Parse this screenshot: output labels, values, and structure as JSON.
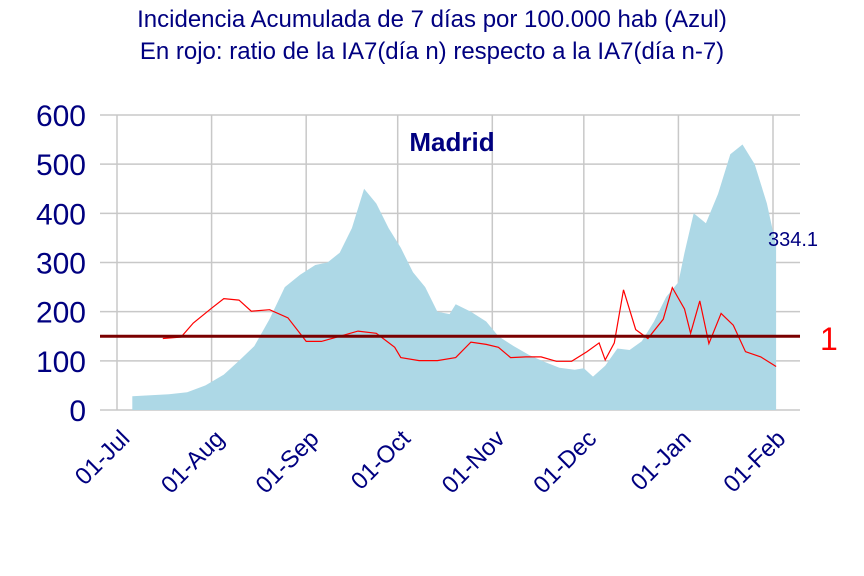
{
  "chart_data": {
    "type": "area",
    "title": "Incidencia Acumulada de 7 días por 100.000 hab (Azul)",
    "subtitle": "En rojo: ratio de la IA7(día n) respecto a la IA7(día n-7)",
    "panel_label": "Madrid",
    "ylim": [
      0,
      600
    ],
    "y_ticks": [
      "0",
      "100",
      "200",
      "300",
      "400",
      "500",
      "600"
    ],
    "x_ticks": [
      "01-Jul",
      "01-Aug",
      "01-Sep",
      "01-Oct",
      "01-Nov",
      "01-Dec",
      "01-Jan",
      "01-Feb"
    ],
    "grid": true,
    "last_value_label": "334.1",
    "reference_line": {
      "label": "1",
      "value": 150,
      "color": "#7a0000"
    },
    "series": [
      {
        "kind": "area",
        "color": "#add8e6",
        "points": [
          [
            "2020-07-06",
            28
          ],
          [
            "2020-07-12",
            30
          ],
          [
            "2020-07-18",
            32
          ],
          [
            "2020-07-24",
            36
          ],
          [
            "2020-07-30",
            50
          ],
          [
            "2020-08-05",
            72
          ],
          [
            "2020-08-10",
            100
          ],
          [
            "2020-08-15",
            130
          ],
          [
            "2020-08-20",
            185
          ],
          [
            "2020-08-25",
            250
          ],
          [
            "2020-08-30",
            275
          ],
          [
            "2020-09-04",
            295
          ],
          [
            "2020-09-08",
            300
          ],
          [
            "2020-09-12",
            320
          ],
          [
            "2020-09-16",
            370
          ],
          [
            "2020-09-20",
            450
          ],
          [
            "2020-09-24",
            420
          ],
          [
            "2020-09-28",
            370
          ],
          [
            "2020-10-02",
            330
          ],
          [
            "2020-10-06",
            280
          ],
          [
            "2020-10-10",
            250
          ],
          [
            "2020-10-14",
            200
          ],
          [
            "2020-10-18",
            195
          ],
          [
            "2020-10-20",
            215
          ],
          [
            "2020-10-25",
            200
          ],
          [
            "2020-10-30",
            180
          ],
          [
            "2020-11-03",
            150
          ],
          [
            "2020-11-08",
            130
          ],
          [
            "2020-11-13",
            112
          ],
          [
            "2020-11-18",
            98
          ],
          [
            "2020-11-23",
            86
          ],
          [
            "2020-11-28",
            82
          ],
          [
            "2020-12-01",
            85
          ],
          [
            "2020-12-04",
            68
          ],
          [
            "2020-12-08",
            90
          ],
          [
            "2020-12-12",
            125
          ],
          [
            "2020-12-16",
            122
          ],
          [
            "2020-12-20",
            140
          ],
          [
            "2020-12-24",
            180
          ],
          [
            "2020-12-28",
            230
          ],
          [
            "2021-01-01",
            260
          ],
          [
            "2021-01-03",
            320
          ],
          [
            "2021-01-06",
            400
          ],
          [
            "2021-01-10",
            380
          ],
          [
            "2021-01-14",
            440
          ],
          [
            "2021-01-18",
            520
          ],
          [
            "2021-01-22",
            540
          ],
          [
            "2021-01-26",
            500
          ],
          [
            "2021-01-30",
            420
          ],
          [
            "2021-02-02",
            334.1
          ]
        ]
      },
      {
        "kind": "line",
        "color": "#ff0000",
        "points": [
          [
            "2020-07-16",
            0.97
          ],
          [
            "2020-07-22",
            0.99
          ],
          [
            "2020-07-26",
            1.18
          ],
          [
            "2020-08-01",
            1.38
          ],
          [
            "2020-08-05",
            1.51
          ],
          [
            "2020-08-10",
            1.49
          ],
          [
            "2020-08-14",
            1.34
          ],
          [
            "2020-08-20",
            1.36
          ],
          [
            "2020-08-26",
            1.25
          ],
          [
            "2020-09-01",
            0.93
          ],
          [
            "2020-09-06",
            0.93
          ],
          [
            "2020-09-12",
            1.0
          ],
          [
            "2020-09-18",
            1.07
          ],
          [
            "2020-09-24",
            1.04
          ],
          [
            "2020-09-30",
            0.85
          ],
          [
            "2020-10-02",
            0.71
          ],
          [
            "2020-10-08",
            0.67
          ],
          [
            "2020-10-14",
            0.67
          ],
          [
            "2020-10-20",
            0.71
          ],
          [
            "2020-10-25",
            0.92
          ],
          [
            "2020-10-30",
            0.89
          ],
          [
            "2020-11-03",
            0.85
          ],
          [
            "2020-11-07",
            0.71
          ],
          [
            "2020-11-12",
            0.72
          ],
          [
            "2020-11-17",
            0.72
          ],
          [
            "2020-11-22",
            0.66
          ],
          [
            "2020-11-27",
            0.66
          ],
          [
            "2020-12-02",
            0.79
          ],
          [
            "2020-12-06",
            0.91
          ],
          [
            "2020-12-08",
            0.68
          ],
          [
            "2020-12-11",
            0.91
          ],
          [
            "2020-12-14",
            1.63
          ],
          [
            "2020-12-18",
            1.09
          ],
          [
            "2020-12-22",
            0.97
          ],
          [
            "2020-12-27",
            1.23
          ],
          [
            "2020-12-30",
            1.66
          ],
          [
            "2021-01-03",
            1.37
          ],
          [
            "2021-01-05",
            1.04
          ],
          [
            "2021-01-08",
            1.48
          ],
          [
            "2021-01-11",
            0.9
          ],
          [
            "2021-01-15",
            1.31
          ],
          [
            "2021-01-19",
            1.15
          ],
          [
            "2021-01-23",
            0.79
          ],
          [
            "2021-01-28",
            0.72
          ],
          [
            "2021-02-02",
            0.59
          ]
        ]
      }
    ]
  }
}
